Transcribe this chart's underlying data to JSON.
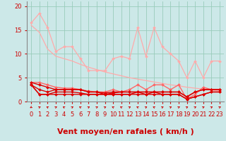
{
  "background_color": "#cce8e8",
  "grid_color": "#99ccbb",
  "xlabel": "Vent moyen/en rafales ( km/h )",
  "xlabel_color": "#cc0000",
  "xlabel_fontsize": 8,
  "ylabel_ticks": [
    0,
    5,
    10,
    15,
    20
  ],
  "xlim": [
    -0.5,
    23.5
  ],
  "ylim": [
    0,
    21
  ],
  "x": [
    0,
    1,
    2,
    3,
    4,
    5,
    6,
    7,
    8,
    9,
    10,
    11,
    12,
    13,
    14,
    15,
    16,
    17,
    18,
    19,
    20,
    21,
    22,
    23
  ],
  "series": [
    {
      "color": "#ffaaaa",
      "lw": 0.9,
      "marker": "D",
      "ms": 2.0,
      "y": [
        16.5,
        18.5,
        15.5,
        10.5,
        11.5,
        11.5,
        9.0,
        6.5,
        6.5,
        6.5,
        9.0,
        9.5,
        9.0,
        15.5,
        9.5,
        15.5,
        11.5,
        10.0,
        8.5,
        5.0,
        8.5,
        5.0,
        8.5,
        8.5
      ]
    },
    {
      "color": "#ffaaaa",
      "lw": 0.9,
      "marker": null,
      "ms": 0,
      "y": [
        16.0,
        14.5,
        11.0,
        9.5,
        9.0,
        8.5,
        7.8,
        7.2,
        6.7,
        6.2,
        5.8,
        5.4,
        5.0,
        4.7,
        4.4,
        4.1,
        3.8,
        3.5,
        3.3,
        3.0,
        2.8,
        2.6,
        2.4,
        2.2
      ]
    },
    {
      "color": "#ff6666",
      "lw": 1.0,
      "marker": "D",
      "ms": 2.0,
      "y": [
        4.0,
        4.0,
        3.5,
        3.0,
        2.8,
        2.8,
        2.5,
        2.2,
        2.0,
        2.0,
        2.5,
        2.0,
        2.5,
        3.5,
        2.5,
        3.5,
        3.5,
        2.5,
        3.5,
        0.5,
        1.5,
        3.0,
        2.5,
        2.5
      ]
    },
    {
      "color": "#dd0000",
      "lw": 1.0,
      "marker": "D",
      "ms": 2.0,
      "y": [
        4.0,
        3.5,
        3.0,
        2.5,
        2.5,
        2.5,
        2.5,
        2.0,
        2.0,
        1.8,
        2.0,
        2.0,
        2.0,
        2.0,
        2.0,
        2.0,
        2.0,
        2.0,
        2.0,
        1.0,
        2.0,
        2.5,
        2.5,
        2.5
      ]
    },
    {
      "color": "#dd0000",
      "lw": 1.0,
      "marker": "D",
      "ms": 2.0,
      "y": [
        3.5,
        2.5,
        2.0,
        2.5,
        2.5,
        2.5,
        2.5,
        2.0,
        2.0,
        1.5,
        1.8,
        2.0,
        2.0,
        2.0,
        2.0,
        2.0,
        2.0,
        2.0,
        2.0,
        1.0,
        2.0,
        2.5,
        2.5,
        2.5
      ]
    },
    {
      "color": "#dd0000",
      "lw": 1.0,
      "marker": "D",
      "ms": 2.0,
      "y": [
        3.5,
        1.5,
        1.5,
        2.0,
        2.0,
        2.0,
        1.8,
        1.5,
        1.5,
        1.5,
        1.5,
        1.5,
        1.5,
        2.0,
        1.5,
        2.0,
        1.5,
        1.5,
        1.5,
        0.5,
        1.0,
        1.5,
        2.0,
        2.0
      ]
    },
    {
      "color": "#dd0000",
      "lw": 1.0,
      "marker": "D",
      "ms": 2.0,
      "y": [
        3.5,
        1.5,
        1.5,
        1.5,
        1.5,
        1.5,
        1.5,
        1.5,
        1.5,
        1.5,
        1.5,
        1.5,
        1.5,
        1.5,
        1.5,
        1.5,
        1.5,
        1.5,
        1.5,
        0.5,
        1.0,
        1.5,
        2.0,
        2.0
      ]
    }
  ],
  "tick_fontsize": 6,
  "tick_color": "#cc0000",
  "arrow_color": "#cc0000"
}
